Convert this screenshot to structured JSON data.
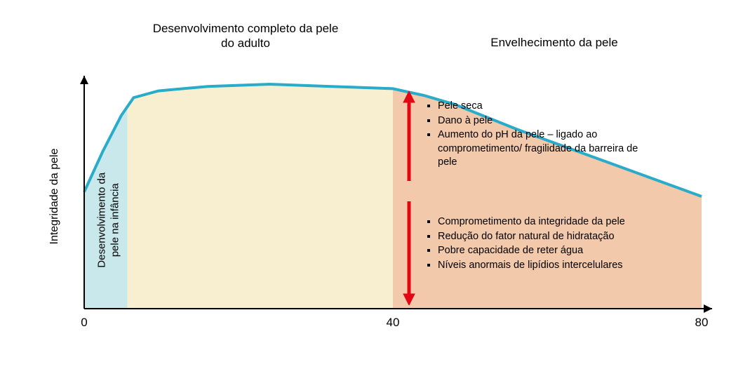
{
  "chart": {
    "type": "area-line",
    "background_color": "#ffffff",
    "line_color": "#29abca",
    "line_width": 4,
    "x_range": [
      0,
      80
    ],
    "x_ticks": [
      0,
      40,
      80
    ],
    "y_axis_label": "Integridade da pele",
    "axis_color": "#000000",
    "curve_points_pct": [
      [
        0,
        48
      ],
      [
        3,
        30
      ],
      [
        6,
        14
      ],
      [
        8,
        6
      ],
      [
        12,
        3
      ],
      [
        20,
        1
      ],
      [
        30,
        0
      ],
      [
        40,
        1
      ],
      [
        50,
        2
      ],
      [
        55,
        5
      ],
      [
        60,
        9
      ],
      [
        70,
        20
      ],
      [
        80,
        30
      ],
      [
        90,
        40
      ],
      [
        100,
        50
      ]
    ],
    "regions": [
      {
        "id": "infancy",
        "x_start_pct": 0,
        "x_end_pct": 7,
        "fill": "#c9e8ec",
        "vert_label": "Desenvolvimento da\npele na infância",
        "vert_label_fontsize": 15
      },
      {
        "id": "adult",
        "x_start_pct": 7,
        "x_end_pct": 50,
        "fill": "#f8efd0",
        "top_label": "Desenvolvimento completo da pele\ndo adulto",
        "top_label_fontsize": 17
      },
      {
        "id": "aging",
        "x_start_pct": 50,
        "x_end_pct": 100,
        "fill": "#f3c9ac",
        "top_label": "Envelhecimento da pele",
        "top_label_fontsize": 17
      }
    ],
    "bullets_upper": [
      "Pele seca",
      "Dano à pele",
      "Aumento do pH da pele – ligado ao comprometimento/ fragilidade da barreira de  pele"
    ],
    "bullets_lower": [
      "Comprometimento da integridade da pele",
      "Redução do fator natural de hidratação",
      "Pobre capacidade de reter água",
      "Níveis anormais de lipídios intercelulares"
    ],
    "arrow_color": "#e30613",
    "x_tick_labels": {
      "0": "0",
      "40": "40",
      "80": "80"
    }
  }
}
